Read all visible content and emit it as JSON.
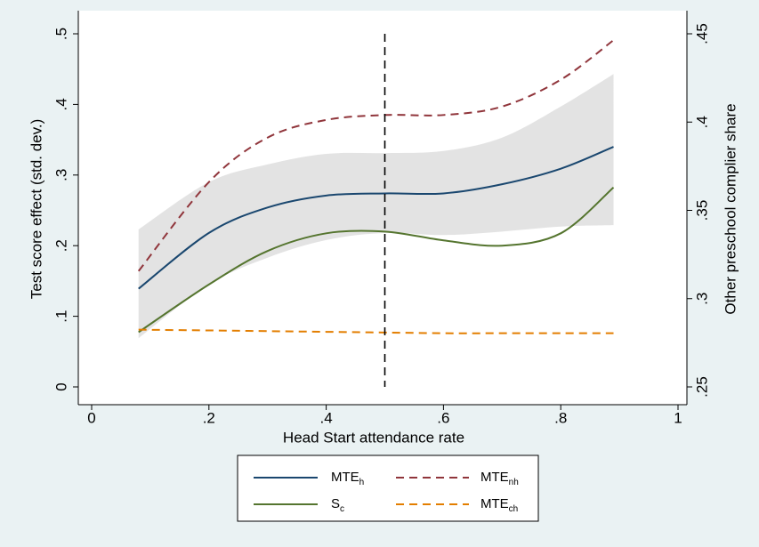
{
  "chart_data": {
    "type": "line",
    "xlabel": "Head Start attendance rate",
    "ylabel": "Test score effect (std. dev.)",
    "y2label": "Other preschool complier share",
    "xlim": [
      0,
      1
    ],
    "xticks": [
      0,
      {
        "value": 0.2,
        "label": ".2"
      },
      {
        "value": 0.4,
        "label": ".4"
      },
      {
        "value": 0.6,
        "label": ".6"
      },
      {
        "value": 0.8,
        "label": ".8"
      },
      1
    ],
    "ylim": [
      0,
      0.5
    ],
    "yticks": [
      0,
      {
        "value": 0.1,
        "label": ".1"
      },
      {
        "value": 0.2,
        "label": ".2"
      },
      {
        "value": 0.3,
        "label": ".3"
      },
      {
        "value": 0.4,
        "label": ".4"
      },
      {
        "value": 0.5,
        "label": ".5"
      }
    ],
    "y2lim": [
      0.25,
      0.45
    ],
    "y2ticks": [
      {
        "value": 0.25,
        "label": ".25"
      },
      {
        "value": 0.3,
        "label": ".3"
      },
      {
        "value": 0.35,
        "label": ".35"
      },
      {
        "value": 0.4,
        "label": ".4"
      },
      {
        "value": 0.45,
        "label": ".45"
      }
    ],
    "x": [
      0.08,
      0.2,
      0.3,
      0.4,
      0.5,
      0.6,
      0.7,
      0.8,
      0.89
    ],
    "band": {
      "color": "#d9d9d9",
      "upper": [
        0.223,
        0.29,
        0.315,
        0.33,
        0.331,
        0.334,
        0.353,
        0.397,
        0.443
      ],
      "lower": [
        0.069,
        0.145,
        0.183,
        0.208,
        0.218,
        0.215,
        0.22,
        0.227,
        0.229
      ]
    },
    "vline": 0.5,
    "series": [
      {
        "name": "MTE",
        "name_sub": "h",
        "color": "#1a476f",
        "dash": false,
        "values": [
          0.139,
          0.218,
          0.254,
          0.271,
          0.274,
          0.274,
          0.287,
          0.309,
          0.34
        ]
      },
      {
        "name": "MTE",
        "name_sub": "nh",
        "color": "#90353b",
        "dash": true,
        "values": [
          0.164,
          0.29,
          0.353,
          0.378,
          0.385,
          0.385,
          0.397,
          0.435,
          0.491
        ]
      },
      {
        "name": "S",
        "name_sub": "c",
        "color": "#55752f",
        "dash": false,
        "axis": "y2",
        "values": [
          0.281,
          0.308,
          0.327,
          0.337,
          0.338,
          0.333,
          0.33,
          0.337,
          0.363
        ]
      },
      {
        "name": "MTE",
        "name_sub": "ch",
        "color": "#e37e00",
        "dash": true,
        "values": [
          0.081,
          0.08,
          0.079,
          0.078,
          0.077,
          0.076,
          0.076,
          0.076,
          0.076
        ]
      }
    ]
  }
}
